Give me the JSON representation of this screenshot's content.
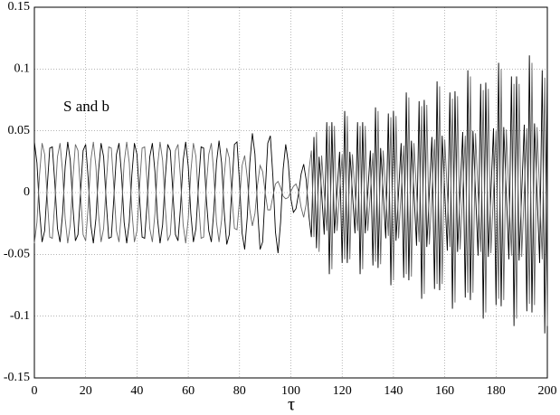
{
  "chart_data": {
    "type": "line",
    "annotation": "S and b",
    "xlabel": "τ",
    "xlim": [
      0,
      200
    ],
    "xticks": [
      0,
      20,
      40,
      60,
      80,
      100,
      120,
      140,
      160,
      180,
      200
    ],
    "ylim": [
      -0.15,
      0.15
    ],
    "yticks": [
      -0.15,
      -0.1,
      -0.05,
      0,
      0.05,
      0.1,
      0.15
    ],
    "grid": true,
    "x": [
      0,
      1,
      2,
      3,
      4,
      5,
      6,
      7,
      8,
      9,
      10,
      11,
      12,
      13,
      14,
      15,
      16,
      17,
      18,
      19,
      20,
      21,
      22,
      23,
      24,
      25,
      26,
      27,
      28,
      29,
      30,
      31,
      32,
      33,
      34,
      35,
      36,
      37,
      38,
      39,
      40,
      41,
      42,
      43,
      44,
      45,
      46,
      47,
      48,
      49,
      50,
      51,
      52,
      53,
      54,
      55,
      56,
      57,
      58,
      59,
      60,
      61,
      62,
      63,
      64,
      65,
      66,
      67,
      68,
      69,
      70,
      71,
      72,
      73,
      74,
      75,
      76,
      77,
      78,
      79,
      80,
      81,
      82,
      83,
      84,
      85,
      86,
      87,
      88,
      89,
      90,
      91,
      92,
      93,
      94,
      95,
      96,
      97,
      98,
      99,
      100,
      101,
      102,
      103,
      104,
      105,
      106,
      107,
      108,
      109,
      110,
      111,
      112,
      113,
      114,
      115,
      116,
      117,
      118,
      119,
      120,
      121,
      122,
      123,
      124,
      125,
      126,
      127,
      128,
      129,
      130,
      131,
      132,
      133,
      134,
      135,
      136,
      137,
      138,
      139,
      140,
      141,
      142,
      143,
      144,
      145,
      146,
      147,
      148,
      149,
      150,
      151,
      152,
      153,
      154,
      155,
      156,
      157,
      158,
      159,
      160,
      161,
      162,
      163,
      164,
      165,
      166,
      167,
      168,
      169,
      170,
      171,
      172,
      173,
      174,
      175,
      176,
      177,
      178,
      179,
      180,
      181,
      182,
      183,
      184,
      185,
      186,
      187,
      188,
      189,
      190,
      191,
      192,
      193,
      194,
      195,
      196,
      197,
      198,
      199,
      200
    ],
    "series": [
      {
        "color": "#000000",
        "values": [
          0.041,
          0.024,
          -0.014,
          -0.04,
          -0.031,
          0.004,
          0.036,
          0.037,
          0.007,
          -0.029,
          -0.04,
          -0.017,
          0.021,
          0.041,
          0.026,
          -0.011,
          -0.039,
          -0.034,
          0,
          0.034,
          0.039,
          0.011,
          -0.026,
          -0.041,
          -0.021,
          0.017,
          0.04,
          0.029,
          -0.007,
          -0.037,
          -0.036,
          -0.004,
          0.031,
          0.04,
          0.014,
          -0.024,
          -0.041,
          -0.024,
          0.014,
          0.04,
          0.031,
          -0.004,
          -0.036,
          -0.037,
          -0.007,
          0.029,
          0.04,
          0.017,
          -0.021,
          -0.041,
          -0.026,
          0.011,
          0.039,
          0.034,
          0,
          -0.034,
          -0.039,
          -0.011,
          0.026,
          0.041,
          0.021,
          -0.017,
          -0.04,
          -0.029,
          0.007,
          0.037,
          0.036,
          -0.004,
          -0.031,
          -0.04,
          -0.014,
          0.024,
          0.042,
          0.024,
          -0.015,
          -0.042,
          -0.034,
          0.004,
          0.039,
          0.041,
          0.008,
          -0.033,
          -0.046,
          -0.02,
          0.024,
          0.048,
          0.031,
          -0.013,
          -0.046,
          -0.04,
          0,
          0.04,
          0.046,
          0.013,
          -0.032,
          -0.049,
          -0.024,
          0.019,
          0.039,
          0.024,
          -0.005,
          -0.016,
          -0.013,
          -0.001,
          0.015,
          0.023,
          0.01,
          -0.018,
          -0.036,
          0.045,
          -0.045,
          0.029,
          0,
          -0.034,
          0.057,
          -0.066,
          0.057,
          -0.033,
          0,
          0.033,
          -0.057,
          0.066,
          -0.057,
          0.033,
          0,
          -0.033,
          0.057,
          -0.066,
          0.057,
          -0.033,
          0,
          0.034,
          -0.059,
          0.069,
          -0.061,
          0.036,
          0,
          -0.037,
          0.064,
          -0.075,
          0.066,
          -0.039,
          0,
          0.04,
          -0.069,
          0.081,
          -0.071,
          0.042,
          0,
          -0.043,
          0.074,
          -0.086,
          0.075,
          -0.044,
          0,
          0.045,
          -0.078,
          0.09,
          -0.079,
          0.046,
          0,
          -0.047,
          0.081,
          -0.094,
          0.082,
          -0.048,
          0,
          0.049,
          -0.085,
          0.099,
          -0.087,
          0.05,
          0,
          -0.051,
          0.088,
          -0.102,
          0.089,
          -0.052,
          0,
          0.052,
          -0.091,
          0.105,
          -0.092,
          0.053,
          0,
          -0.054,
          0.094,
          -0.108,
          0.094,
          -0.055,
          0,
          0.055,
          -0.096,
          0.111,
          -0.097,
          0.056,
          0,
          -0.057,
          0.099,
          -0.114,
          0.1
        ]
      },
      {
        "color": "#666666",
        "values": [
          -0.041,
          -0.024,
          0.014,
          0.04,
          0.031,
          -0.004,
          -0.036,
          -0.037,
          -0.007,
          0.029,
          0.04,
          0.017,
          -0.021,
          -0.041,
          -0.026,
          0.011,
          0.039,
          0.034,
          0,
          -0.034,
          -0.039,
          -0.011,
          0.026,
          0.041,
          0.021,
          -0.017,
          -0.04,
          -0.029,
          0.007,
          0.037,
          0.036,
          0.004,
          -0.031,
          -0.04,
          -0.014,
          0.024,
          0.041,
          0.024,
          -0.014,
          -0.04,
          -0.031,
          0.004,
          0.036,
          0.037,
          0.007,
          -0.029,
          -0.04,
          -0.017,
          0.021,
          0.041,
          0.026,
          -0.011,
          -0.039,
          -0.034,
          0,
          0.034,
          0.039,
          0.011,
          -0.026,
          -0.041,
          -0.021,
          0.017,
          0.04,
          0.029,
          -0.007,
          -0.037,
          -0.036,
          0.004,
          0.031,
          0.04,
          0.014,
          -0.024,
          -0.04,
          -0.022,
          0.013,
          0.036,
          0.028,
          -0.003,
          -0.029,
          -0.03,
          -0.006,
          0.022,
          0.03,
          0.012,
          -0.014,
          -0.027,
          -0.017,
          0.006,
          0.022,
          0.017,
          0,
          -0.014,
          -0.014,
          -0.003,
          0.007,
          0.009,
          0.004,
          -0.003,
          -0.005,
          -0.004,
          0.001,
          0.005,
          0.007,
          0.001,
          -0.012,
          -0.02,
          -0.009,
          0.017,
          0.034,
          -0.036,
          0.049,
          -0.048,
          0.03,
          0,
          -0.031,
          0.054,
          -0.062,
          0.054,
          -0.031,
          0,
          0.031,
          -0.054,
          0.062,
          -0.054,
          0.031,
          0,
          -0.031,
          0.054,
          -0.062,
          0.054,
          -0.031,
          0,
          0.032,
          -0.056,
          0.066,
          -0.058,
          0.034,
          0,
          -0.035,
          0.061,
          -0.071,
          0.062,
          -0.037,
          0,
          0.038,
          -0.066,
          0.077,
          -0.068,
          0.04,
          0,
          -0.04,
          0.07,
          -0.082,
          0.071,
          -0.042,
          0,
          0.043,
          -0.074,
          0.086,
          -0.074,
          0.043,
          0,
          -0.044,
          0.076,
          -0.089,
          0.078,
          -0.046,
          0,
          0.046,
          -0.081,
          0.094,
          -0.081,
          0.048,
          0,
          -0.048,
          0.083,
          -0.097,
          0.084,
          -0.049,
          0,
          0.05,
          -0.086,
          0.1,
          -0.087,
          0.051,
          0,
          -0.051,
          0.088,
          -0.102,
          0.088,
          -0.052,
          0,
          0.052,
          -0.09,
          0.105,
          -0.091,
          0.053,
          0,
          -0.054,
          0.093,
          -0.108
        ]
      }
    ]
  }
}
